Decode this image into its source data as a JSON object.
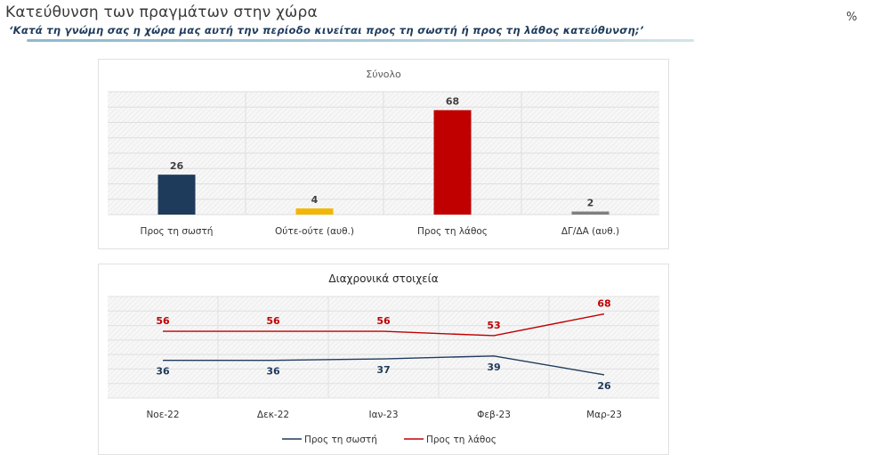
{
  "header": {
    "title": "Κατεύθυνση των πραγμάτων στην χώρα",
    "subtitle": "‘Κατά τη γνώμη σας η χώρα μας αυτή την περίοδο κινείται προς τη σωστή ή προς τη λάθος κατεύθυνση;’",
    "unit": "%"
  },
  "chart_data": [
    {
      "type": "bar",
      "title": "Σύνολο",
      "categories": [
        "Προς τη σωστή",
        "Ούτε-ούτε (αυθ.)",
        "Προς τη λάθος",
        "ΔΓ/ΔΑ (αυθ.)"
      ],
      "values": [
        26,
        4,
        68,
        2
      ],
      "colors": [
        "#1f3b5c",
        "#f2b705",
        "#c00000",
        "#7f7f7f"
      ],
      "ylim": [
        0,
        80
      ],
      "grid": true,
      "legend": "none"
    },
    {
      "type": "line",
      "title": "Διαχρονικά στοιχεία",
      "categories": [
        "Νοε-22",
        "Δεκ-22",
        "Ιαν-23",
        "Φεβ-23",
        "Μαρ-23"
      ],
      "series": [
        {
          "name": "Προς τη σωστή",
          "values": [
            36,
            36,
            37,
            39,
            26
          ],
          "color": "#1f3b5c"
        },
        {
          "name": "Προς τη λάθος",
          "values": [
            56,
            56,
            56,
            53,
            68
          ],
          "color": "#c00000"
        }
      ],
      "ylim": [
        10,
        80
      ],
      "grid": true,
      "legend": "bottom"
    }
  ]
}
